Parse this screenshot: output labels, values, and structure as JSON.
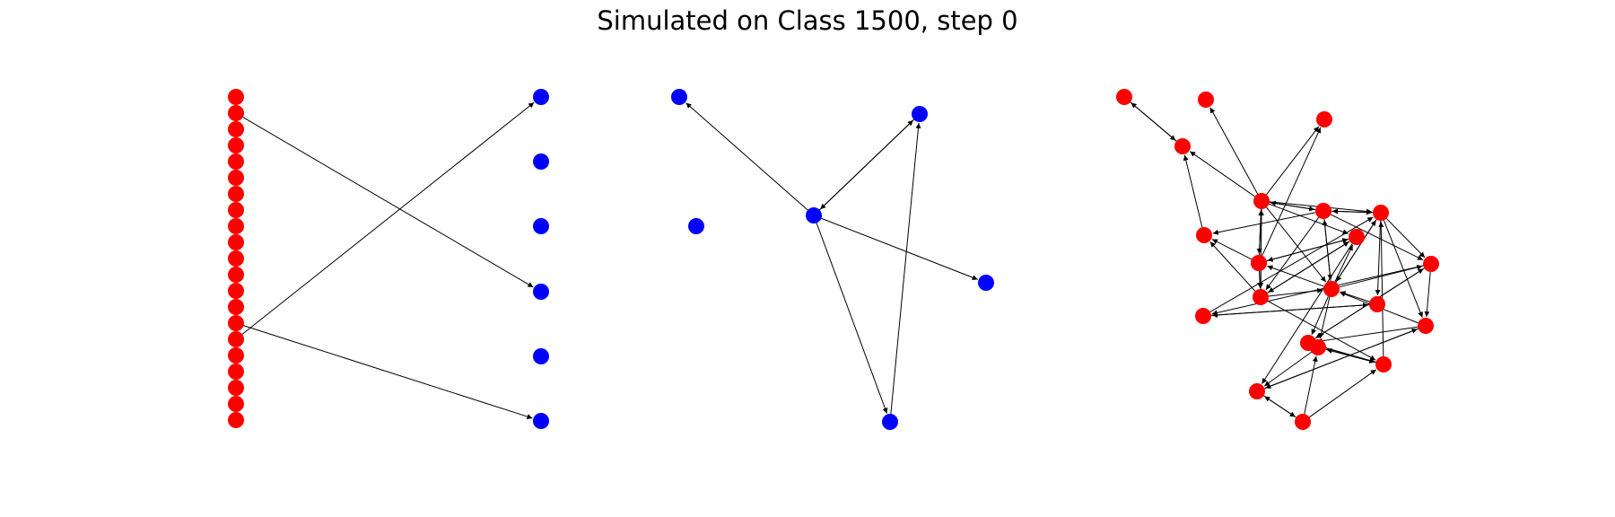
{
  "title": "Simulated on Class 1500, step 0",
  "colors": {
    "red": "#ff0000",
    "blue": "#0000ff",
    "edge": "#000000"
  },
  "panels": [
    {
      "name": "bipartite",
      "nodes": [
        {
          "id": "L0",
          "color": "red"
        },
        {
          "id": "L1",
          "color": "red"
        },
        {
          "id": "L2",
          "color": "red"
        },
        {
          "id": "L3",
          "color": "red"
        },
        {
          "id": "L4",
          "color": "red"
        },
        {
          "id": "L5",
          "color": "red"
        },
        {
          "id": "L6",
          "color": "red"
        },
        {
          "id": "L7",
          "color": "red"
        },
        {
          "id": "L8",
          "color": "red"
        },
        {
          "id": "L9",
          "color": "red"
        },
        {
          "id": "L10",
          "color": "red"
        },
        {
          "id": "L11",
          "color": "red"
        },
        {
          "id": "L12",
          "color": "red"
        },
        {
          "id": "L13",
          "color": "red"
        },
        {
          "id": "L14",
          "color": "red"
        },
        {
          "id": "L15",
          "color": "red"
        },
        {
          "id": "L16",
          "color": "red"
        },
        {
          "id": "L17",
          "color": "red"
        },
        {
          "id": "L18",
          "color": "red"
        },
        {
          "id": "L19",
          "color": "red"
        },
        {
          "id": "L20",
          "color": "red"
        },
        {
          "id": "R0",
          "color": "blue"
        },
        {
          "id": "R1",
          "color": "blue"
        },
        {
          "id": "R2",
          "color": "blue"
        },
        {
          "id": "R3",
          "color": "blue"
        },
        {
          "id": "R4",
          "color": "blue"
        },
        {
          "id": "R5",
          "color": "blue"
        }
      ],
      "edges": [
        [
          "L1",
          "R3"
        ],
        [
          "L15",
          "R0"
        ],
        [
          "L14",
          "R5"
        ]
      ]
    },
    {
      "name": "blue-graph",
      "nodes": [
        {
          "id": "A",
          "color": "blue"
        },
        {
          "id": "B",
          "color": "blue"
        },
        {
          "id": "C",
          "color": "blue"
        },
        {
          "id": "D",
          "color": "blue"
        },
        {
          "id": "E",
          "color": "blue"
        },
        {
          "id": "F",
          "color": "blue"
        }
      ],
      "edges": [
        [
          "C",
          "A"
        ],
        [
          "C",
          "B"
        ],
        [
          "B",
          "C"
        ],
        [
          "C",
          "D"
        ],
        [
          "C",
          "E"
        ],
        [
          "E",
          "B"
        ]
      ]
    },
    {
      "name": "red-graph",
      "nodes": [
        {
          "id": "n0",
          "color": "red"
        },
        {
          "id": "n1",
          "color": "red"
        },
        {
          "id": "n2",
          "color": "red"
        },
        {
          "id": "n3",
          "color": "red"
        },
        {
          "id": "n4",
          "color": "red"
        },
        {
          "id": "n5",
          "color": "red"
        },
        {
          "id": "n6",
          "color": "red"
        },
        {
          "id": "n7",
          "color": "red"
        },
        {
          "id": "n8",
          "color": "red"
        },
        {
          "id": "n9",
          "color": "red"
        },
        {
          "id": "n10",
          "color": "red"
        },
        {
          "id": "n11",
          "color": "red"
        },
        {
          "id": "n12",
          "color": "red"
        },
        {
          "id": "n13",
          "color": "red"
        },
        {
          "id": "n14",
          "color": "red"
        },
        {
          "id": "n15",
          "color": "red"
        },
        {
          "id": "n16",
          "color": "red"
        },
        {
          "id": "n17",
          "color": "red"
        },
        {
          "id": "n18",
          "color": "red"
        },
        {
          "id": "n19",
          "color": "red"
        },
        {
          "id": "n20",
          "color": "red"
        },
        {
          "id": "n21",
          "color": "red"
        }
      ],
      "edges": [
        [
          "n0",
          "n3"
        ],
        [
          "n3",
          "n0"
        ],
        [
          "n6",
          "n3"
        ],
        [
          "n6",
          "n1"
        ],
        [
          "n5",
          "n3"
        ],
        [
          "n6",
          "n2"
        ],
        [
          "n4",
          "n2"
        ],
        [
          "n6",
          "n7"
        ],
        [
          "n7",
          "n6"
        ],
        [
          "n6",
          "n9"
        ],
        [
          "n9",
          "n6"
        ],
        [
          "n6",
          "n10"
        ],
        [
          "n6",
          "n12"
        ],
        [
          "n6",
          "n11"
        ],
        [
          "n6",
          "n8"
        ],
        [
          "n7",
          "n12"
        ],
        [
          "n7",
          "n11"
        ],
        [
          "n7",
          "n8"
        ],
        [
          "n7",
          "n5"
        ],
        [
          "n7",
          "n13"
        ],
        [
          "n8",
          "n7"
        ],
        [
          "n8",
          "n12"
        ],
        [
          "n8",
          "n15"
        ],
        [
          "n8",
          "n16"
        ],
        [
          "n8",
          "n13"
        ],
        [
          "n9",
          "n11"
        ],
        [
          "n10",
          "n11"
        ],
        [
          "n11",
          "n10"
        ],
        [
          "n9",
          "n10"
        ],
        [
          "n10",
          "n9"
        ],
        [
          "n10",
          "n20"
        ],
        [
          "n12",
          "n10"
        ],
        [
          "n12",
          "n7"
        ],
        [
          "n12",
          "n8"
        ],
        [
          "n12",
          "n13"
        ],
        [
          "n12",
          "n17"
        ],
        [
          "n12",
          "n18"
        ],
        [
          "n12",
          "n9"
        ],
        [
          "n11",
          "n5"
        ],
        [
          "n11",
          "n19"
        ],
        [
          "n11",
          "n6"
        ],
        [
          "n11",
          "n12"
        ],
        [
          "n13",
          "n14"
        ],
        [
          "n14",
          "n15"
        ],
        [
          "n15",
          "n14"
        ],
        [
          "n13",
          "n17"
        ],
        [
          "n17",
          "n13"
        ],
        [
          "n13",
          "n16"
        ],
        [
          "n16",
          "n12"
        ],
        [
          "n17",
          "n19"
        ],
        [
          "n19",
          "n17"
        ],
        [
          "n16",
          "n20"
        ],
        [
          "n20",
          "n16"
        ],
        [
          "n19",
          "n18"
        ],
        [
          "n18",
          "n20"
        ],
        [
          "n18",
          "n19"
        ],
        [
          "n21",
          "n18"
        ],
        [
          "n21",
          "n20"
        ],
        [
          "n20",
          "n21"
        ],
        [
          "n21",
          "n19"
        ],
        [
          "n19",
          "n8"
        ],
        [
          "n9",
          "n5"
        ],
        [
          "n4",
          "n10"
        ],
        [
          "n14",
          "n8"
        ],
        [
          "n15",
          "n12"
        ],
        [
          "n16",
          "n17"
        ]
      ]
    }
  ]
}
